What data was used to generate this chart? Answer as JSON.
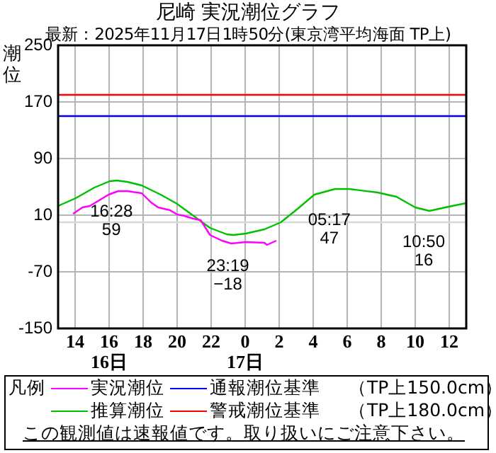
{
  "chart_data": {
    "type": "line",
    "title": "尼崎 実況潮位グラフ",
    "subtitle": "最新：2025年11月17日1時50分(東京湾平均海面 TP上)",
    "ylabel": "潮位",
    "legend_title": "凡例",
    "xlim": [
      "2025-11-16T13:00",
      "2025-11-17T13:00"
    ],
    "xticks": [
      {
        "value": "2025-11-16T14:00",
        "label": "14"
      },
      {
        "value": "2025-11-16T16:00",
        "label": "16\n16日"
      },
      {
        "value": "2025-11-16T18:00",
        "label": "18"
      },
      {
        "value": "2025-11-16T20:00",
        "label": "20"
      },
      {
        "value": "2025-11-16T22:00",
        "label": "22"
      },
      {
        "value": "2025-11-17T00:00",
        "label": "0\n17日"
      },
      {
        "value": "2025-11-17T02:00",
        "label": "2"
      },
      {
        "value": "2025-11-17T04:00",
        "label": "4"
      },
      {
        "value": "2025-11-17T06:00",
        "label": "6"
      },
      {
        "value": "2025-11-17T08:00",
        "label": "8"
      },
      {
        "value": "2025-11-17T10:00",
        "label": "10"
      },
      {
        "value": "2025-11-17T12:00",
        "label": "12"
      }
    ],
    "ylim": [
      -150,
      250
    ],
    "yticks": [
      -150,
      -70,
      10,
      90,
      170,
      250
    ],
    "grid": true,
    "legend": "bottom",
    "marker": "none",
    "line_style": "solid",
    "series": [
      {
        "name": "実況潮位",
        "color": "#ff00ff",
        "x": [
          "2025-11-16T13:53",
          "2025-11-16T14:26",
          "2025-11-16T14:52",
          "2025-11-16T15:58",
          "2025-11-16T16:32",
          "2025-11-16T17:05",
          "2025-11-16T17:55",
          "2025-11-16T18:28",
          "2025-11-16T18:53",
          "2025-11-16T19:35",
          "2025-11-16T20:00",
          "2025-11-16T20:25",
          "2025-11-16T20:58",
          "2025-11-16T21:23",
          "2025-11-16T21:56",
          "2025-11-16T22:38",
          "2025-11-16T23:11",
          "2025-11-17T00:02",
          "2025-11-17T01:08",
          "2025-11-17T01:17",
          "2025-11-17T01:50"
        ],
        "values": [
          12,
          21,
          23,
          39,
          44,
          44,
          41,
          28,
          21,
          17,
          11,
          9,
          5,
          3,
          -18,
          -26,
          -30,
          -28,
          -29,
          -32,
          -26
        ]
      },
      {
        "name": "推算潮位",
        "color": "#00c000",
        "x": [
          "2025-11-16T13:00",
          "2025-11-16T14:02",
          "2025-11-16T15:08",
          "2025-11-16T16:02",
          "2025-11-16T16:28",
          "2025-11-16T17:05",
          "2025-11-16T17:55",
          "2025-11-16T19:02",
          "2025-11-16T20:00",
          "2025-11-16T20:58",
          "2025-11-16T21:56",
          "2025-11-16T22:55",
          "2025-11-16T23:19",
          "2025-11-17T00:02",
          "2025-11-17T01:08",
          "2025-11-17T02:06",
          "2025-11-17T03:05",
          "2025-11-17T04:04",
          "2025-11-17T05:17",
          "2025-11-17T06:08",
          "2025-11-17T07:48",
          "2025-11-17T08:54",
          "2025-11-17T10:00",
          "2025-11-17T10:50",
          "2025-11-17T11:58",
          "2025-11-17T13:00"
        ],
        "values": [
          23,
          34,
          49,
          58,
          59,
          57,
          52,
          39,
          26,
          9,
          -8,
          -17,
          -18,
          -16,
          -10,
          0,
          19,
          39,
          47,
          47,
          42,
          36,
          21,
          16,
          22,
          27
        ]
      }
    ],
    "ref_lines": [
      {
        "axis": "y",
        "value": 150,
        "label": "通報潮位基準 （TP上150.0cm）",
        "color": "#0000ff"
      },
      {
        "axis": "y",
        "value": 180,
        "label": "警戒潮位基準 （TP上180.0cm）",
        "color": "#ff0000"
      },
      {
        "axis": "y",
        "value": 0,
        "color": "#d8d8d8"
      }
    ],
    "annotations": [
      {
        "text": "16:28\n59",
        "x": "2025-11-16T16:28",
        "y": 59
      },
      {
        "text": "23:19\n−18",
        "x": "2025-11-16T23:19",
        "y": -18
      },
      {
        "text": "05:17\n47",
        "x": "2025-11-17T05:17",
        "y": 47
      },
      {
        "text": "10:50\n16",
        "x": "2025-11-17T10:50",
        "y": 16
      },
      "この観測値は速報値です。取り扱いにご注意下さい。"
    ]
  }
}
